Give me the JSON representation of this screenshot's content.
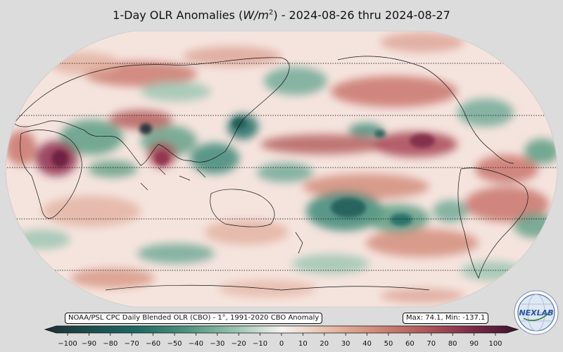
{
  "header": {
    "title_prefix": "1-Day OLR Anomalies (",
    "title_unit": "W/m",
    "title_unit_power": "2",
    "title_suffix": ") - 2024-08-26 thru 2024-08-27"
  },
  "footer": {
    "source_label": "NOAA/PSL CPC Daily Blended OLR (CBO) - 1°, 1991-2020 CBO Anomaly",
    "stats_label": "Max: 74.1,  Min: -137.1"
  },
  "colorbar": {
    "ticks": [
      "−100",
      "−90",
      "−80",
      "−70",
      "−60",
      "−50",
      "−40",
      "−30",
      "−20",
      "−10",
      "0",
      "10",
      "20",
      "30",
      "40",
      "50",
      "60",
      "70",
      "80",
      "90",
      "100"
    ],
    "colors": [
      "#1f2f33",
      "#1b4f4e",
      "#1f6b64",
      "#3f8a7a",
      "#6aa895",
      "#98c4b0",
      "#c6dfd3",
      "#eef4ef",
      "#faf2ee",
      "#efd3c6",
      "#e2b1a0",
      "#d48b7a",
      "#c46a64",
      "#a84955",
      "#7e2c4a",
      "#4d1a36"
    ]
  },
  "logo": {
    "text": "NEXLAB",
    "icon": "globe-logo-icon"
  },
  "map": {
    "projection": "Robinson",
    "central_longitude": 180,
    "colors": {
      "neutral": "#f7e9e4",
      "positive": "#c9756c",
      "strong_positive": "#8e2f4f",
      "negative": "#5e9e85",
      "strong_negative": "#1f5c55"
    }
  }
}
